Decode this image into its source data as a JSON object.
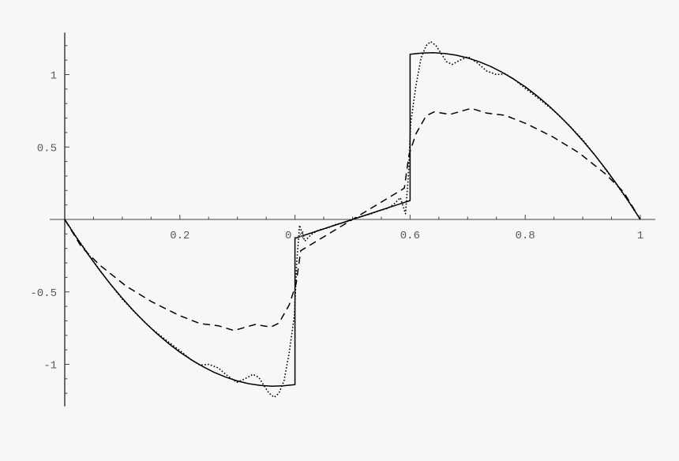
{
  "chart_data": {
    "type": "line",
    "title": "",
    "xlabel": "",
    "ylabel": "",
    "xlim": [
      0,
      1
    ],
    "ylim": [
      -1.29,
      1.29
    ],
    "grid": false,
    "x_ticks": [
      {
        "value": 0.2,
        "label": "0.2"
      },
      {
        "value": 0.4,
        "label": "0.4"
      },
      {
        "value": 0.6,
        "label": "0.6"
      },
      {
        "value": 0.8,
        "label": "0.8"
      },
      {
        "value": 1,
        "label": "1"
      }
    ],
    "y_ticks": [
      {
        "value": 1,
        "label": "1"
      },
      {
        "value": 0.5,
        "label": "0.5"
      },
      {
        "value": -0.5,
        "label": "-0.5"
      },
      {
        "value": -1,
        "label": "-1"
      }
    ],
    "x_minor_step": 0.05,
    "y_minor_step": 0.1,
    "series": [
      {
        "style": "solid",
        "color": "#000000",
        "points": [
          [
            0,
            0
          ],
          [
            0.02,
            -0.123
          ],
          [
            0.04,
            -0.238
          ],
          [
            0.06,
            -0.347
          ],
          [
            0.08,
            -0.449
          ],
          [
            0.1,
            -0.544
          ],
          [
            0.12,
            -0.632
          ],
          [
            0.14,
            -0.714
          ],
          [
            0.16,
            -0.788
          ],
          [
            0.18,
            -0.855
          ],
          [
            0.2,
            -0.916
          ],
          [
            0.22,
            -0.969
          ],
          [
            0.24,
            -1.016
          ],
          [
            0.26,
            -1.056
          ],
          [
            0.28,
            -1.089
          ],
          [
            0.3,
            -1.115
          ],
          [
            0.32,
            -1.134
          ],
          [
            0.34,
            -1.146
          ],
          [
            0.36,
            -1.151
          ],
          [
            0.38,
            -1.149
          ],
          [
            0.4,
            -1.14
          ],
          [
            0.4,
            -0.13
          ],
          [
            0.5,
            0
          ],
          [
            0.6,
            0.13
          ],
          [
            0.6,
            1.14
          ],
          [
            0.62,
            1.149
          ],
          [
            0.64,
            1.151
          ],
          [
            0.66,
            1.146
          ],
          [
            0.68,
            1.134
          ],
          [
            0.7,
            1.115
          ],
          [
            0.72,
            1.089
          ],
          [
            0.74,
            1.056
          ],
          [
            0.76,
            1.016
          ],
          [
            0.78,
            0.969
          ],
          [
            0.8,
            0.916
          ],
          [
            0.82,
            0.855
          ],
          [
            0.84,
            0.788
          ],
          [
            0.86,
            0.714
          ],
          [
            0.88,
            0.632
          ],
          [
            0.9,
            0.544
          ],
          [
            0.92,
            0.449
          ],
          [
            0.94,
            0.347
          ],
          [
            0.96,
            0.238
          ],
          [
            0.98,
            0.123
          ],
          [
            1,
            0
          ]
        ]
      },
      {
        "style": "dashed",
        "color": "#000000",
        "points": [
          [
            0,
            0
          ],
          [
            0.029,
            -0.189
          ],
          [
            0.061,
            -0.316
          ],
          [
            0.107,
            -0.461
          ],
          [
            0.152,
            -0.57
          ],
          [
            0.198,
            -0.661
          ],
          [
            0.235,
            -0.719
          ],
          [
            0.267,
            -0.734
          ],
          [
            0.294,
            -0.767
          ],
          [
            0.331,
            -0.725
          ],
          [
            0.358,
            -0.743
          ],
          [
            0.372,
            -0.716
          ],
          [
            0.39,
            -0.59
          ],
          [
            0.402,
            -0.443
          ],
          [
            0.41,
            -0.216
          ],
          [
            0.5,
            0
          ],
          [
            0.59,
            0.216
          ],
          [
            0.598,
            0.443
          ],
          [
            0.61,
            0.59
          ],
          [
            0.628,
            0.716
          ],
          [
            0.642,
            0.743
          ],
          [
            0.669,
            0.725
          ],
          [
            0.706,
            0.767
          ],
          [
            0.733,
            0.734
          ],
          [
            0.765,
            0.719
          ],
          [
            0.802,
            0.661
          ],
          [
            0.848,
            0.57
          ],
          [
            0.893,
            0.461
          ],
          [
            0.939,
            0.316
          ],
          [
            0.971,
            0.189
          ],
          [
            1,
            0
          ]
        ]
      },
      {
        "style": "dotted",
        "color": "#000000",
        "points": [
          [
            0,
            0
          ],
          [
            0.025,
            -0.15
          ],
          [
            0.05,
            -0.29
          ],
          [
            0.075,
            -0.425
          ],
          [
            0.1,
            -0.55
          ],
          [
            0.125,
            -0.655
          ],
          [
            0.15,
            -0.75
          ],
          [
            0.175,
            -0.83
          ],
          [
            0.2,
            -0.905
          ],
          [
            0.22,
            -0.97
          ],
          [
            0.235,
            -1.006
          ],
          [
            0.25,
            -1.0
          ],
          [
            0.267,
            -1.025
          ],
          [
            0.283,
            -1.08
          ],
          [
            0.299,
            -1.124
          ],
          [
            0.313,
            -1.1
          ],
          [
            0.327,
            -1.07
          ],
          [
            0.337,
            -1.09
          ],
          [
            0.347,
            -1.152
          ],
          [
            0.355,
            -1.2
          ],
          [
            0.364,
            -1.228
          ],
          [
            0.372,
            -1.2
          ],
          [
            0.381,
            -1.115
          ],
          [
            0.39,
            -0.92
          ],
          [
            0.399,
            -0.66
          ],
          [
            0.403,
            -0.3
          ],
          [
            0.408,
            -0.04
          ],
          [
            0.417,
            -0.15
          ],
          [
            0.428,
            -0.105
          ],
          [
            0.44,
            -0.075
          ],
          [
            0.455,
            -0.06
          ],
          [
            0.47,
            -0.036
          ],
          [
            0.485,
            -0.022
          ],
          [
            0.5,
            0
          ],
          [
            0.515,
            0.022
          ],
          [
            0.53,
            0.036
          ],
          [
            0.545,
            0.06
          ],
          [
            0.56,
            0.075
          ],
          [
            0.572,
            0.105
          ],
          [
            0.583,
            0.15
          ],
          [
            0.592,
            0.04
          ],
          [
            0.597,
            0.3
          ],
          [
            0.601,
            0.66
          ],
          [
            0.61,
            0.92
          ],
          [
            0.619,
            1.115
          ],
          [
            0.628,
            1.2
          ],
          [
            0.636,
            1.228
          ],
          [
            0.645,
            1.2
          ],
          [
            0.653,
            1.152
          ],
          [
            0.663,
            1.09
          ],
          [
            0.673,
            1.07
          ],
          [
            0.687,
            1.1
          ],
          [
            0.701,
            1.124
          ],
          [
            0.717,
            1.08
          ],
          [
            0.733,
            1.025
          ],
          [
            0.75,
            1.0
          ],
          [
            0.765,
            1.006
          ],
          [
            0.78,
            0.97
          ],
          [
            0.8,
            0.905
          ],
          [
            0.825,
            0.83
          ],
          [
            0.85,
            0.75
          ],
          [
            0.875,
            0.655
          ],
          [
            0.9,
            0.55
          ],
          [
            0.925,
            0.425
          ],
          [
            0.95,
            0.29
          ],
          [
            0.975,
            0.15
          ],
          [
            1,
            0
          ]
        ]
      }
    ]
  }
}
